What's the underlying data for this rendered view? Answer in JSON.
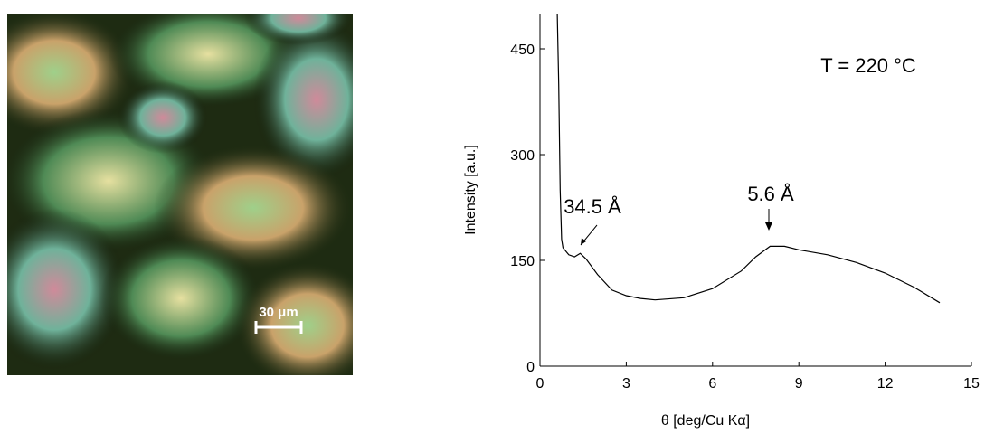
{
  "micrograph": {
    "scale_bar": "30 μm"
  },
  "chart_data": {
    "type": "line",
    "x_label": "θ [deg/Cu Kα]",
    "y_label": "Intensity [a.u.]",
    "annotations": [
      "34.5 Å",
      "5.6 Å",
      "T = 220 °C"
    ],
    "x": [
      0.6,
      0.65,
      0.7,
      0.75,
      0.8,
      1.0,
      1.2,
      1.4,
      1.6,
      2.0,
      2.5,
      3.0,
      3.5,
      4.0,
      5.0,
      6.0,
      7.0,
      7.5,
      8.0,
      8.5,
      9.0,
      10.0,
      11.0,
      12.0,
      13.0,
      13.9
    ],
    "values": [
      500,
      400,
      250,
      180,
      168,
      158,
      155,
      160,
      152,
      130,
      108,
      100,
      96,
      94,
      97,
      110,
      135,
      155,
      170,
      170,
      165,
      158,
      147,
      132,
      112,
      90
    ],
    "color": "#000000",
    "xlim": [
      0,
      15
    ],
    "xticks": [
      0,
      3,
      6,
      9,
      12,
      15
    ],
    "ylim": [
      0,
      500
    ],
    "yticks": [
      0,
      150,
      300,
      450
    ]
  }
}
